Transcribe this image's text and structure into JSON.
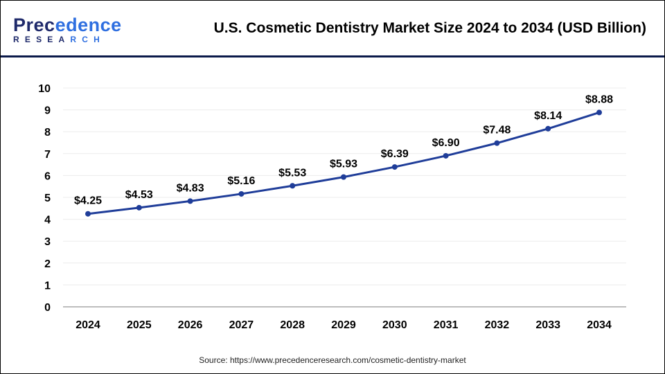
{
  "header": {
    "logo_line1": "Precedence",
    "logo_line2": "RESEARCH",
    "title": "U.S. Cosmetic Dentistry Market Size 2024 to 2034 (USD Billion)"
  },
  "source": "Source: https://www.precedenceresearch.com/cosmetic-dentistry-market",
  "chart_data": {
    "type": "line",
    "title": "U.S. Cosmetic Dentistry Market Size 2024 to 2034 (USD Billion)",
    "categories": [
      "2024",
      "2025",
      "2026",
      "2027",
      "2028",
      "2029",
      "2030",
      "2031",
      "2032",
      "2033",
      "2034"
    ],
    "values": [
      4.25,
      4.53,
      4.83,
      5.16,
      5.53,
      5.93,
      6.39,
      6.9,
      7.48,
      8.14,
      8.88
    ],
    "data_labels": [
      "$4.25",
      "$4.53",
      "$4.83",
      "$5.16",
      "$5.53",
      "$5.93",
      "$6.39",
      "$6.90",
      "$7.48",
      "$8.14",
      "$8.88"
    ],
    "yticks": [
      0,
      1,
      2,
      3,
      4,
      5,
      6,
      7,
      8,
      9,
      10
    ],
    "ylim": [
      0,
      10
    ],
    "grid": true,
    "line_color": "#1f3d99",
    "xlabel": "",
    "ylabel": ""
  }
}
